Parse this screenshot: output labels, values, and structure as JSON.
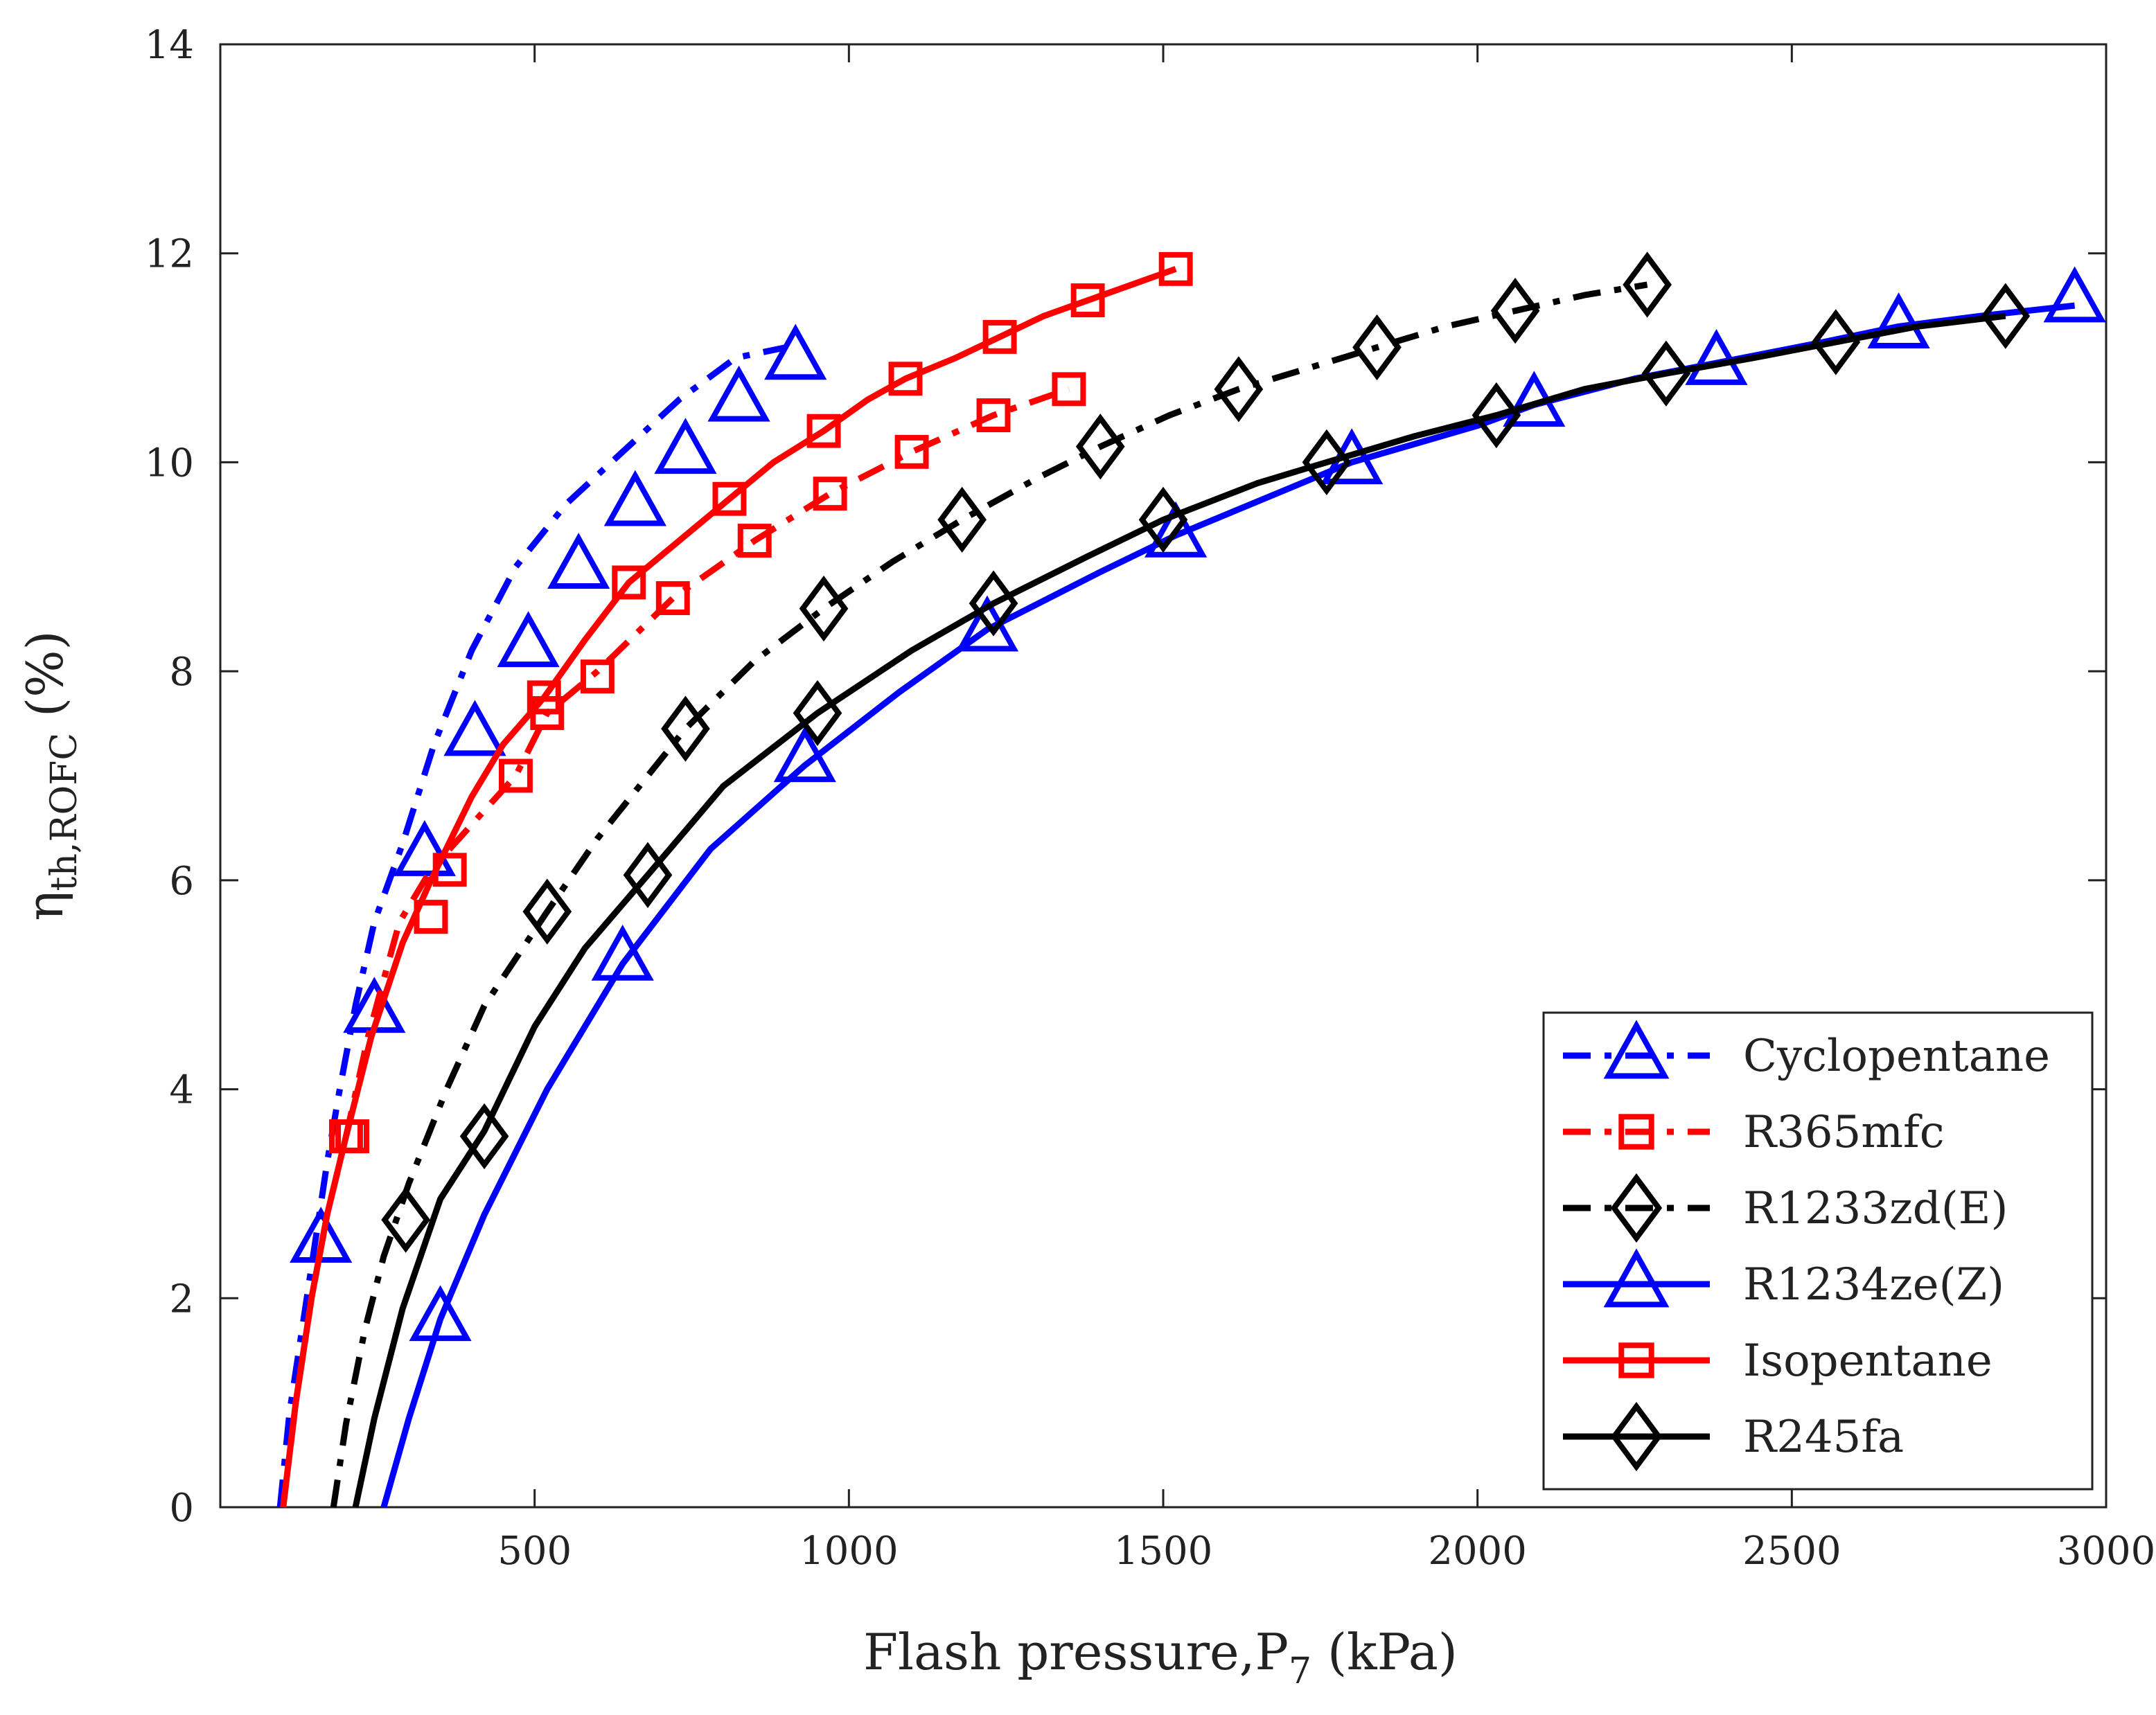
{
  "chart_data": {
    "type": "line",
    "title": "",
    "xlabel": {
      "main": "Flash pressure,P",
      "sub": "7",
      "tail": " (kPa)"
    },
    "ylabel": {
      "main": "η",
      "sub": "th,ROFC",
      "tail": " (%)"
    },
    "xlim": [
      0,
      3000
    ],
    "ylim": [
      0,
      14
    ],
    "xticks": [
      500,
      1000,
      1500,
      2000,
      2500,
      3000
    ],
    "yticks": [
      0,
      2,
      4,
      6,
      8,
      10,
      12,
      14
    ],
    "legend_position": "bottom-right",
    "series": [
      {
        "name": "Cyclopentane",
        "color": "#0000ff",
        "dash": "dashdot",
        "marker": "triangle",
        "curve_x": [
          95,
          110,
          130,
          150,
          170,
          190,
          215,
          245,
          290,
          340,
          400,
          470,
          550,
          640,
          730,
          820,
          900
        ],
        "curve_y": [
          0,
          0.9,
          1.7,
          2.5,
          3.3,
          4.0,
          4.8,
          5.6,
          6.35,
          7.3,
          8.2,
          9.0,
          9.6,
          10.1,
          10.6,
          11.0,
          11.1
        ],
        "markers_x": [
          160,
          245,
          325,
          405,
          490,
          570,
          660,
          740,
          825,
          915
        ],
        "markers_y": [
          2.55,
          4.75,
          6.25,
          7.4,
          8.25,
          9.0,
          9.6,
          10.1,
          10.6,
          11.0
        ]
      },
      {
        "name": "R365mfc",
        "color": "#ff0000",
        "dash": "dashdot",
        "marker": "square",
        "curve_x": [
          100,
          120,
          145,
          170,
          200,
          235,
          285,
          335,
          395,
          470,
          520,
          600,
          720,
          850,
          970,
          1100,
          1230,
          1350
        ],
        "curve_y": [
          0,
          1.0,
          2.0,
          2.8,
          3.55,
          4.5,
          5.6,
          6.1,
          6.5,
          7.0,
          7.6,
          8.0,
          8.7,
          9.25,
          9.7,
          10.1,
          10.45,
          10.7
        ],
        "markers_x": [
          200,
          335,
          365,
          470,
          520,
          600,
          720,
          850,
          970,
          1100,
          1230,
          1350
        ],
        "markers_y": [
          3.55,
          5.65,
          6.1,
          7.0,
          7.6,
          7.95,
          8.7,
          9.25,
          9.7,
          10.1,
          10.45,
          10.7
        ]
      },
      {
        "name": "R1233zd(E)",
        "color": "#000000",
        "dash": "dashdot",
        "marker": "diamond",
        "curve_x": [
          180,
          200,
          230,
          260,
          300,
          360,
          420,
          520,
          600,
          740,
          850,
          960,
          1070,
          1180,
          1300,
          1400,
          1510,
          1620,
          1730,
          1840,
          1950,
          2060,
          2170,
          2270
        ],
        "curve_y": [
          0,
          0.8,
          1.7,
          2.4,
          3.1,
          4.0,
          4.8,
          5.7,
          6.4,
          7.45,
          8.1,
          8.6,
          9.05,
          9.45,
          9.85,
          10.15,
          10.45,
          10.7,
          10.9,
          11.1,
          11.3,
          11.45,
          11.6,
          11.7
        ],
        "markers_x": [
          295,
          520,
          740,
          960,
          1180,
          1400,
          1620,
          1840,
          2060,
          2270
        ],
        "markers_y": [
          2.75,
          5.7,
          7.45,
          8.6,
          9.45,
          10.15,
          10.7,
          11.1,
          11.45,
          11.7
        ]
      },
      {
        "name": "R1234ze(Z)",
        "color": "#0000ff",
        "dash": "solid",
        "marker": "triangle",
        "curve_x": [
          260,
          300,
          350,
          420,
          520,
          640,
          780,
          930,
          1080,
          1220,
          1400,
          1520,
          1700,
          1800,
          2000,
          2090,
          2250,
          2380,
          2550,
          2670,
          2800,
          2950
        ],
        "curve_y": [
          0,
          0.85,
          1.8,
          2.8,
          4.0,
          5.2,
          6.3,
          7.1,
          7.8,
          8.4,
          8.95,
          9.3,
          9.75,
          10.0,
          10.35,
          10.55,
          10.8,
          10.95,
          11.15,
          11.3,
          11.4,
          11.5
        ],
        "markers_x": [
          350,
          640,
          930,
          1220,
          1520,
          1800,
          2090,
          2380,
          2670,
          2950
        ],
        "markers_y": [
          1.8,
          5.25,
          7.15,
          8.4,
          9.3,
          10.0,
          10.55,
          10.95,
          11.3,
          11.55
        ]
      },
      {
        "name": "Isopentane",
        "color": "#ff0000",
        "dash": "solid",
        "marker": "square",
        "curve_x": [
          100,
          120,
          145,
          170,
          200,
          240,
          290,
          335,
          400,
          450,
          515,
          580,
          650,
          730,
          810,
          880,
          960,
          1030,
          1090,
          1170,
          1240,
          1310,
          1380,
          1450,
          1520
        ],
        "curve_y": [
          0,
          1.0,
          2.0,
          2.8,
          3.55,
          4.5,
          5.4,
          6.0,
          6.8,
          7.3,
          7.75,
          8.3,
          8.85,
          9.25,
          9.65,
          10.0,
          10.3,
          10.6,
          10.8,
          11.0,
          11.2,
          11.4,
          11.55,
          11.7,
          11.85
        ],
        "markers_x": [
          210,
          335,
          515,
          650,
          810,
          960,
          1090,
          1240,
          1380,
          1520
        ],
        "markers_y": [
          3.55,
          5.65,
          7.75,
          8.85,
          9.65,
          10.3,
          10.8,
          11.2,
          11.55,
          11.85
        ]
      },
      {
        "name": "R245fa",
        "color": "#000000",
        "dash": "solid",
        "marker": "diamond",
        "curve_x": [
          215,
          245,
          290,
          350,
          420,
          500,
          580,
          680,
          800,
          950,
          1100,
          1230,
          1380,
          1500,
          1650,
          1760,
          1900,
          2030,
          2170,
          2300,
          2440,
          2570,
          2700,
          2840
        ],
        "curve_y": [
          0,
          0.85,
          1.9,
          2.95,
          3.6,
          4.6,
          5.35,
          6.05,
          6.9,
          7.6,
          8.2,
          8.65,
          9.1,
          9.45,
          9.8,
          10.0,
          10.25,
          10.45,
          10.7,
          10.85,
          11.0,
          11.15,
          11.3,
          11.4
        ],
        "markers_x": [
          420,
          680,
          950,
          1230,
          1500,
          1760,
          2030,
          2300,
          2570,
          2840
        ],
        "markers_y": [
          3.55,
          6.05,
          7.6,
          8.65,
          9.45,
          10.0,
          10.45,
          10.85,
          11.15,
          11.4
        ]
      }
    ]
  }
}
